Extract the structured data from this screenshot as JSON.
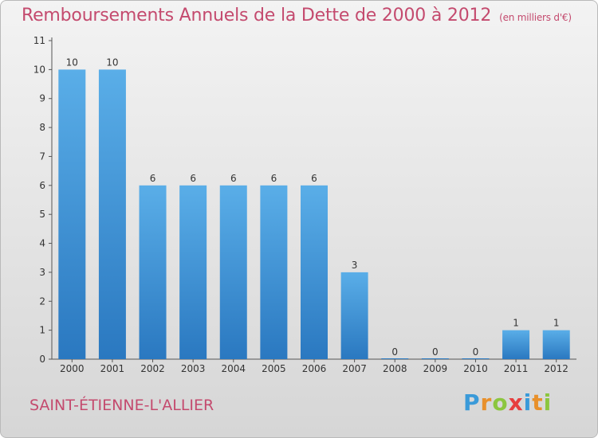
{
  "title": "Remboursements Annuels de la Dette de 2000 à 2012",
  "subtitle": "(en milliers d'€)",
  "city": "SAINT-ÉTIENNE-L'ALLIER",
  "logo": {
    "letters": [
      "P",
      "r",
      "o",
      "x",
      "i",
      "t",
      "i"
    ],
    "colors": [
      "#3a9ad9",
      "#e8902b",
      "#8cc63f",
      "#e73e3e",
      "#3a9ad9",
      "#e8902b",
      "#8cc63f"
    ]
  },
  "colors": {
    "bar_top": "#5aaee8",
    "bar_bottom": "#2a78c0",
    "title": "#c44a6e"
  },
  "chart_data": {
    "type": "bar",
    "categories": [
      "2000",
      "2001",
      "2002",
      "2003",
      "2004",
      "2005",
      "2006",
      "2007",
      "2008",
      "2009",
      "2010",
      "2011",
      "2012"
    ],
    "values": [
      10,
      10,
      6,
      6,
      6,
      6,
      6,
      3,
      0,
      0,
      0,
      1,
      1
    ],
    "data_labels": [
      "10",
      "10",
      "6",
      "6",
      "6",
      "6",
      "6",
      "3",
      "0",
      "0",
      "0",
      "1",
      "1"
    ],
    "yticks": [
      "0",
      "1",
      "2",
      "3",
      "4",
      "5",
      "6",
      "7",
      "8",
      "9",
      "10",
      "11"
    ],
    "ylim": [
      0,
      11
    ],
    "grid": false,
    "legend": "none"
  }
}
